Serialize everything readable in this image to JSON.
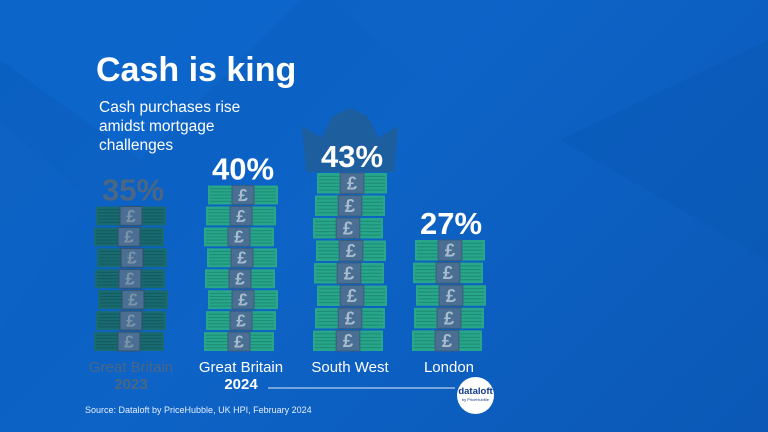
{
  "title": "Cash is king",
  "subtitle": "Cash purchases rise amidst mortgage challenges",
  "source": "Source: Dataloft by PriceHubble, UK HPI, February 2024",
  "logo": {
    "word": "dataloft",
    "sub": "by PriceHubble"
  },
  "colors": {
    "background": "#0b5fc2",
    "note_green": "#27a68a",
    "note_stripe": "#1e8a73",
    "pound_box": "#4a6f92",
    "pound_symbol": "#a8bcd0",
    "crown": "#1c5e9e",
    "highlight_text": "#ffffff",
    "faded_text": "#4a6785",
    "faded_note": "#186b70"
  },
  "chart_data": {
    "type": "bar",
    "title": "Cash is king",
    "subtitle": "Cash purchases rise amidst mortgage challenges",
    "categories": [
      "Great Britain 2023",
      "Great Britain 2024",
      "South West",
      "London"
    ],
    "display_labels": [
      [
        "Great Britain",
        "2023"
      ],
      [
        "Great Britain",
        "2024"
      ],
      [
        "South West"
      ],
      [
        "London"
      ]
    ],
    "values": [
      35,
      40,
      43,
      27
    ],
    "value_labels": [
      "35%",
      "40%",
      "43%",
      "27%"
    ],
    "unit": "%",
    "faded": [
      true,
      false,
      false,
      false
    ],
    "crown_on": "South West",
    "bar_style": "stacked banknotes with pound sign",
    "ylim": [
      0,
      43
    ],
    "grid": false,
    "legend": "none"
  }
}
